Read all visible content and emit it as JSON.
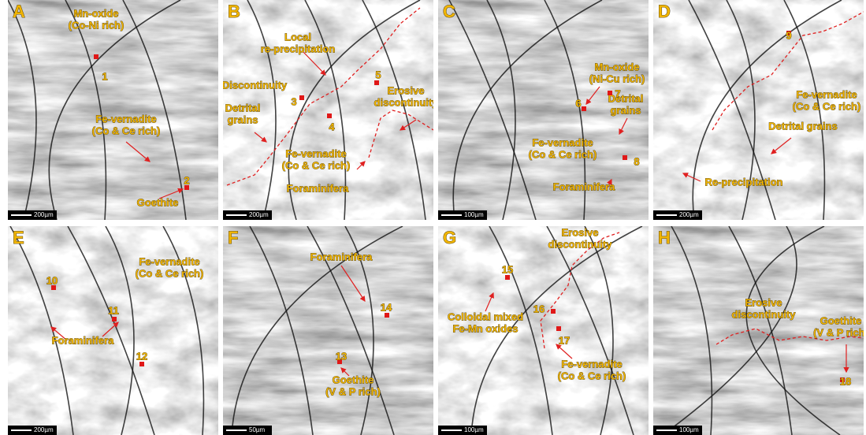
{
  "panels": [
    {
      "letter": "A",
      "scale_bar": "200µm",
      "annotations": [
        [
          "Mn-oxide",
          "(Co-Ni rich)"
        ],
        [
          "Fe-vernadite",
          "(Co & Ce rich)"
        ],
        [
          "Goethite"
        ]
      ],
      "points": [
        1,
        2
      ]
    },
    {
      "letter": "B",
      "scale_bar": "200µm",
      "annotations": [
        [
          "Local",
          "re-precipitation"
        ],
        [
          "Discontinuity"
        ],
        [
          "Erosive",
          "discontinuity"
        ],
        [
          "Detrital",
          "grains"
        ],
        [
          "Fe-vernadite",
          "(Co & Ce rich)"
        ],
        [
          "Foraminifera"
        ]
      ],
      "points": [
        3,
        4,
        5
      ]
    },
    {
      "letter": "C",
      "scale_bar": "100µm",
      "annotations": [
        [
          "Mn-oxide",
          "(Ni-Cu rich)"
        ],
        [
          "Detrital",
          "grains"
        ],
        [
          "Fe-vernadite",
          "(Co & Ce rich)"
        ],
        [
          "Foraminifera"
        ]
      ],
      "points": [
        6,
        7,
        8
      ]
    },
    {
      "letter": "D",
      "scale_bar": "200µm",
      "annotations": [
        [
          "Fe-vernadite",
          "(Co & Ce rich)"
        ],
        [
          "Detrital grains"
        ],
        [
          "Re-precipitation"
        ]
      ],
      "points": [
        9
      ]
    },
    {
      "letter": "E",
      "scale_bar": "200µm",
      "annotations": [
        [
          "Fe-vernadite",
          "(Co & Ce rich)"
        ],
        [
          "Foraminifera"
        ]
      ],
      "points": [
        10,
        11,
        12
      ]
    },
    {
      "letter": "F",
      "scale_bar": "50µm",
      "annotations": [
        [
          "Foraminifera"
        ],
        [
          "Goethite",
          "(V & P rich)"
        ]
      ],
      "points": [
        14,
        13
      ]
    },
    {
      "letter": "G",
      "scale_bar": "100µm",
      "annotations": [
        [
          "Erosive",
          "discontinuity"
        ],
        [
          "Colloidal mixed",
          "Fe-Mn oxides"
        ],
        [
          "Fe-vernadite",
          "(Co & Ce rich)"
        ]
      ],
      "points": [
        15,
        16,
        17
      ]
    },
    {
      "letter": "H",
      "scale_bar": "100µm",
      "annotations": [
        [
          "Erosive",
          "discontinuity"
        ],
        [
          "Goethite",
          "(V & P rich)"
        ]
      ],
      "points": [
        18
      ]
    }
  ]
}
